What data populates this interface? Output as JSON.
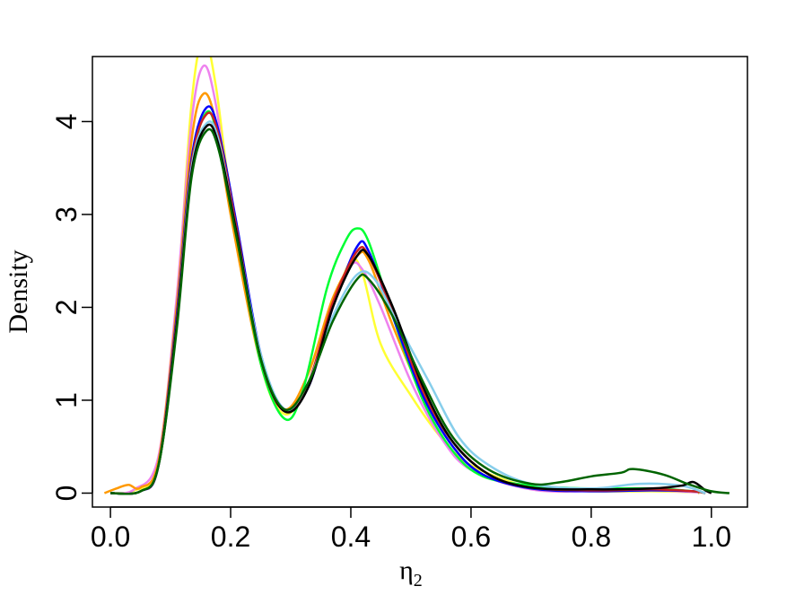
{
  "chart_data": {
    "type": "line",
    "xlabel": "η",
    "xlabel_subscript": "2",
    "ylabel": "Density",
    "xlim": [
      -0.03,
      1.06
    ],
    "ylim": [
      -0.15,
      4.7
    ],
    "x_ticks": [
      "0.0",
      "0.2",
      "0.4",
      "0.6",
      "0.8",
      "1.0"
    ],
    "x_tick_values": [
      0.0,
      0.2,
      0.4,
      0.6,
      0.8,
      1.0
    ],
    "y_ticks": [
      "0",
      "1",
      "2",
      "3",
      "4"
    ],
    "y_tick_values": [
      0,
      1,
      2,
      3,
      4
    ],
    "grid": false,
    "series": [
      {
        "color": "#ffff33",
        "points": [
          [
            0.0,
            0
          ],
          [
            0.04,
            0.03
          ],
          [
            0.08,
            0.3
          ],
          [
            0.11,
            2.0
          ],
          [
            0.135,
            4.2
          ],
          [
            0.155,
            4.9
          ],
          [
            0.175,
            4.4
          ],
          [
            0.2,
            3.2
          ],
          [
            0.25,
            1.4
          ],
          [
            0.29,
            0.85
          ],
          [
            0.33,
            1.2
          ],
          [
            0.37,
            2.0
          ],
          [
            0.4,
            2.5
          ],
          [
            0.42,
            2.35
          ],
          [
            0.45,
            1.6
          ],
          [
            0.5,
            1.05
          ],
          [
            0.55,
            0.6
          ],
          [
            0.6,
            0.3
          ],
          [
            0.7,
            0.06
          ],
          [
            0.8,
            0.02
          ],
          [
            0.9,
            0.02
          ],
          [
            0.97,
            0.01
          ],
          [
            0.98,
            0
          ]
        ]
      },
      {
        "color": "#ee82ee",
        "points": [
          [
            0.0,
            0
          ],
          [
            0.04,
            0.04
          ],
          [
            0.08,
            0.4
          ],
          [
            0.11,
            2.1
          ],
          [
            0.135,
            4.0
          ],
          [
            0.155,
            4.6
          ],
          [
            0.175,
            4.2
          ],
          [
            0.2,
            3.1
          ],
          [
            0.25,
            1.4
          ],
          [
            0.29,
            0.9
          ],
          [
            0.33,
            1.2
          ],
          [
            0.37,
            2.0
          ],
          [
            0.4,
            2.45
          ],
          [
            0.42,
            2.4
          ],
          [
            0.45,
            2.0
          ],
          [
            0.5,
            1.2
          ],
          [
            0.55,
            0.6
          ],
          [
            0.6,
            0.25
          ],
          [
            0.7,
            0.04
          ],
          [
            0.8,
            0.02
          ],
          [
            0.9,
            0.03
          ],
          [
            0.97,
            0.01
          ],
          [
            0.98,
            0
          ]
        ]
      },
      {
        "color": "#ff9900",
        "points": [
          [
            -0.01,
            0
          ],
          [
            0.01,
            0.05
          ],
          [
            0.03,
            0.09
          ],
          [
            0.05,
            0.06
          ],
          [
            0.08,
            0.35
          ],
          [
            0.11,
            2.0
          ],
          [
            0.135,
            3.8
          ],
          [
            0.155,
            4.3
          ],
          [
            0.175,
            4.0
          ],
          [
            0.2,
            3.0
          ],
          [
            0.25,
            1.4
          ],
          [
            0.29,
            0.9
          ],
          [
            0.33,
            1.3
          ],
          [
            0.37,
            2.1
          ],
          [
            0.41,
            2.55
          ],
          [
            0.43,
            2.5
          ],
          [
            0.47,
            1.8
          ],
          [
            0.52,
            1.05
          ],
          [
            0.57,
            0.5
          ],
          [
            0.62,
            0.2
          ],
          [
            0.7,
            0.05
          ],
          [
            0.8,
            0.02
          ],
          [
            0.9,
            0.03
          ],
          [
            0.97,
            0.02
          ],
          [
            0.98,
            0
          ]
        ]
      },
      {
        "color": "#00ff33",
        "points": [
          [
            0.0,
            0
          ],
          [
            0.05,
            0.02
          ],
          [
            0.08,
            0.3
          ],
          [
            0.11,
            1.8
          ],
          [
            0.135,
            3.5
          ],
          [
            0.16,
            4.1
          ],
          [
            0.18,
            3.8
          ],
          [
            0.21,
            2.8
          ],
          [
            0.25,
            1.4
          ],
          [
            0.29,
            0.8
          ],
          [
            0.32,
            1.1
          ],
          [
            0.36,
            2.2
          ],
          [
            0.39,
            2.7
          ],
          [
            0.41,
            2.85
          ],
          [
            0.43,
            2.7
          ],
          [
            0.47,
            1.9
          ],
          [
            0.52,
            1.0
          ],
          [
            0.57,
            0.45
          ],
          [
            0.62,
            0.18
          ],
          [
            0.7,
            0.08
          ],
          [
            0.75,
            0.06
          ],
          [
            0.8,
            0.05
          ],
          [
            0.9,
            0.05
          ],
          [
            0.97,
            0.02
          ],
          [
            0.99,
            0
          ]
        ]
      },
      {
        "color": "#0000ff",
        "points": [
          [
            0.0,
            0
          ],
          [
            0.05,
            0.02
          ],
          [
            0.08,
            0.3
          ],
          [
            0.11,
            1.9
          ],
          [
            0.135,
            3.6
          ],
          [
            0.16,
            4.15
          ],
          [
            0.18,
            3.9
          ],
          [
            0.21,
            2.9
          ],
          [
            0.25,
            1.5
          ],
          [
            0.29,
            0.9
          ],
          [
            0.33,
            1.15
          ],
          [
            0.37,
            2.0
          ],
          [
            0.41,
            2.65
          ],
          [
            0.43,
            2.6
          ],
          [
            0.47,
            1.9
          ],
          [
            0.52,
            1.05
          ],
          [
            0.57,
            0.5
          ],
          [
            0.62,
            0.2
          ],
          [
            0.7,
            0.05
          ],
          [
            0.8,
            0.02
          ],
          [
            0.9,
            0.03
          ],
          [
            0.97,
            0.02
          ],
          [
            0.99,
            0
          ]
        ]
      },
      {
        "color": "#cc2222",
        "points": [
          [
            0.0,
            0
          ],
          [
            0.05,
            0.02
          ],
          [
            0.08,
            0.3
          ],
          [
            0.11,
            1.85
          ],
          [
            0.135,
            3.55
          ],
          [
            0.16,
            4.08
          ],
          [
            0.18,
            3.85
          ],
          [
            0.21,
            2.85
          ],
          [
            0.25,
            1.45
          ],
          [
            0.29,
            0.88
          ],
          [
            0.33,
            1.2
          ],
          [
            0.37,
            2.05
          ],
          [
            0.41,
            2.6
          ],
          [
            0.43,
            2.55
          ],
          [
            0.47,
            1.95
          ],
          [
            0.52,
            1.1
          ],
          [
            0.57,
            0.55
          ],
          [
            0.63,
            0.2
          ],
          [
            0.7,
            0.06
          ],
          [
            0.8,
            0.03
          ],
          [
            0.9,
            0.04
          ],
          [
            0.97,
            0.02
          ],
          [
            0.99,
            0
          ]
        ]
      },
      {
        "color": "#87ceeb",
        "points": [
          [
            0.0,
            0
          ],
          [
            0.05,
            0.02
          ],
          [
            0.08,
            0.3
          ],
          [
            0.11,
            1.8
          ],
          [
            0.135,
            3.5
          ],
          [
            0.16,
            3.98
          ],
          [
            0.18,
            3.8
          ],
          [
            0.21,
            2.8
          ],
          [
            0.25,
            1.5
          ],
          [
            0.29,
            0.9
          ],
          [
            0.33,
            1.2
          ],
          [
            0.37,
            1.9
          ],
          [
            0.41,
            2.35
          ],
          [
            0.44,
            2.3
          ],
          [
            0.48,
            1.8
          ],
          [
            0.53,
            1.2
          ],
          [
            0.58,
            0.6
          ],
          [
            0.63,
            0.3
          ],
          [
            0.7,
            0.1
          ],
          [
            0.8,
            0.05
          ],
          [
            0.88,
            0.1
          ],
          [
            0.95,
            0.08
          ],
          [
            0.99,
            0
          ]
        ]
      },
      {
        "color": "#000000",
        "points": [
          [
            0.0,
            0
          ],
          [
            0.05,
            0.02
          ],
          [
            0.08,
            0.3
          ],
          [
            0.11,
            1.8
          ],
          [
            0.135,
            3.45
          ],
          [
            0.16,
            3.95
          ],
          [
            0.18,
            3.75
          ],
          [
            0.21,
            2.8
          ],
          [
            0.25,
            1.45
          ],
          [
            0.29,
            0.88
          ],
          [
            0.33,
            1.15
          ],
          [
            0.37,
            2.0
          ],
          [
            0.41,
            2.55
          ],
          [
            0.43,
            2.55
          ],
          [
            0.47,
            2.0
          ],
          [
            0.52,
            1.15
          ],
          [
            0.57,
            0.55
          ],
          [
            0.63,
            0.2
          ],
          [
            0.7,
            0.06
          ],
          [
            0.8,
            0.04
          ],
          [
            0.9,
            0.05
          ],
          [
            0.95,
            0.08
          ],
          [
            0.97,
            0.12
          ],
          [
            0.99,
            0.03
          ],
          [
            1.0,
            0
          ]
        ]
      },
      {
        "color": "#006400",
        "points": [
          [
            0.0,
            0
          ],
          [
            0.05,
            0.02
          ],
          [
            0.08,
            0.3
          ],
          [
            0.11,
            1.75
          ],
          [
            0.135,
            3.4
          ],
          [
            0.16,
            3.9
          ],
          [
            0.18,
            3.7
          ],
          [
            0.21,
            2.75
          ],
          [
            0.25,
            1.45
          ],
          [
            0.29,
            0.9
          ],
          [
            0.33,
            1.2
          ],
          [
            0.37,
            1.85
          ],
          [
            0.41,
            2.3
          ],
          [
            0.43,
            2.3
          ],
          [
            0.47,
            1.9
          ],
          [
            0.52,
            1.2
          ],
          [
            0.57,
            0.6
          ],
          [
            0.63,
            0.25
          ],
          [
            0.7,
            0.1
          ],
          [
            0.75,
            0.12
          ],
          [
            0.8,
            0.18
          ],
          [
            0.85,
            0.22
          ],
          [
            0.87,
            0.26
          ],
          [
            0.92,
            0.2
          ],
          [
            0.96,
            0.1
          ],
          [
            1.0,
            0.02
          ],
          [
            1.03,
            0
          ]
        ]
      }
    ]
  }
}
